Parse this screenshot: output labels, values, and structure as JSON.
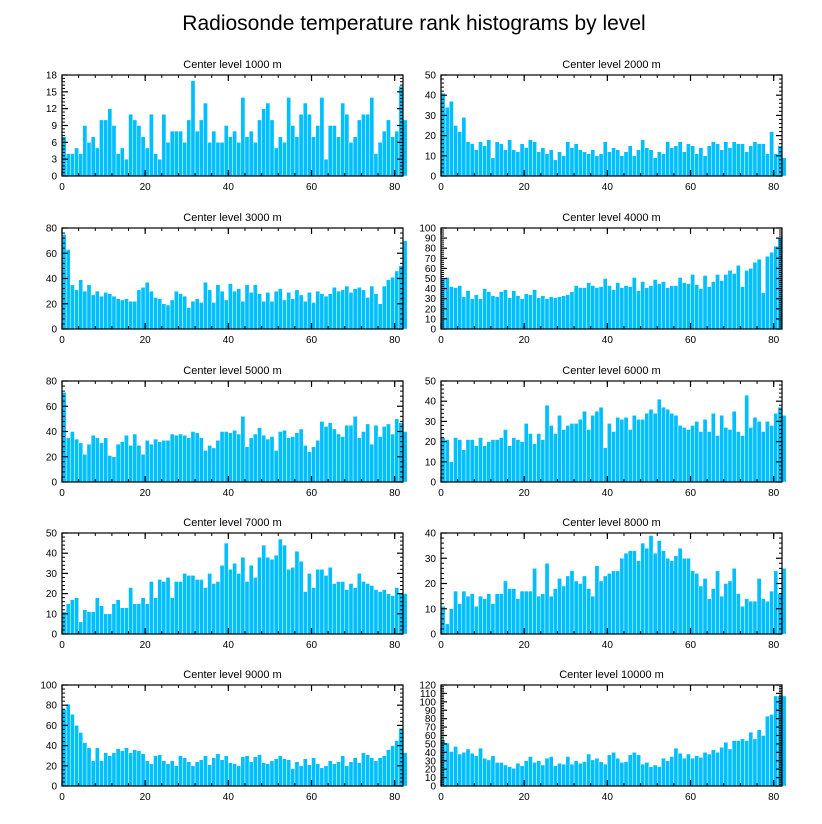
{
  "title": "Radiosonde temperature rank histograms by level",
  "colors": {
    "bar": "#00BFFF",
    "bar_edge": "#ffffff",
    "axis": "#000000",
    "background": "#ffffff"
  },
  "chart_data": [
    {
      "type": "bar",
      "title": "Center level 1000 m",
      "xlim": [
        0,
        82
      ],
      "ylim": [
        0,
        18
      ],
      "xticks": [
        0,
        20,
        40,
        60,
        80
      ],
      "yticks": [
        0,
        3,
        6,
        9,
        12,
        15,
        18
      ],
      "values": [
        7,
        4,
        4,
        5,
        4,
        9,
        6,
        7,
        5,
        10,
        10,
        12,
        9,
        4,
        5,
        3,
        11,
        10,
        9,
        7,
        5,
        11,
        4,
        3,
        11,
        6,
        8,
        8,
        8,
        6,
        10,
        17,
        8,
        10,
        13,
        6,
        8,
        6,
        6,
        9,
        7,
        8,
        6,
        14,
        7,
        8,
        6,
        10,
        12,
        13,
        10,
        5,
        7,
        6,
        14,
        9,
        7,
        11,
        13,
        11,
        7,
        9,
        14,
        3,
        9,
        9,
        7,
        13,
        11,
        6,
        7,
        10,
        11,
        11,
        14,
        4,
        6,
        8,
        10,
        7,
        8,
        16,
        10
      ]
    },
    {
      "type": "bar",
      "title": "Center level 2000 m",
      "xlim": [
        0,
        82
      ],
      "ylim": [
        0,
        50
      ],
      "xticks": [
        0,
        20,
        40,
        60,
        80
      ],
      "yticks": [
        0,
        10,
        20,
        30,
        40,
        50
      ],
      "values": [
        41,
        34,
        37,
        25,
        22,
        29,
        17,
        16,
        13,
        17,
        15,
        18,
        9,
        17,
        16,
        13,
        18,
        13,
        12,
        16,
        14,
        18,
        17,
        12,
        14,
        11,
        13,
        8,
        12,
        10,
        17,
        14,
        16,
        13,
        12,
        11,
        13,
        10,
        11,
        17,
        12,
        14,
        13,
        10,
        12,
        15,
        10,
        13,
        18,
        14,
        13,
        9,
        12,
        11,
        17,
        14,
        15,
        17,
        12,
        16,
        15,
        11,
        14,
        10,
        15,
        17,
        16,
        13,
        17,
        14,
        17,
        16,
        16,
        12,
        15,
        17,
        16,
        16,
        11,
        22,
        11,
        15,
        9
      ]
    },
    {
      "type": "bar",
      "title": "Center level 3000 m",
      "xlim": [
        0,
        82
      ],
      "ylim": [
        0,
        80
      ],
      "xticks": [
        0,
        20,
        40,
        60,
        80
      ],
      "yticks": [
        0,
        20,
        40,
        60,
        80
      ],
      "values": [
        75,
        63,
        35,
        31,
        39,
        30,
        35,
        27,
        30,
        26,
        29,
        28,
        26,
        24,
        23,
        24,
        22,
        22,
        31,
        33,
        37,
        30,
        25,
        24,
        20,
        19,
        23,
        30,
        28,
        26,
        17,
        22,
        24,
        21,
        37,
        31,
        21,
        35,
        30,
        23,
        36,
        30,
        32,
        22,
        35,
        29,
        35,
        28,
        22,
        29,
        22,
        30,
        32,
        23,
        29,
        24,
        31,
        27,
        22,
        29,
        21,
        30,
        28,
        26,
        28,
        33,
        30,
        31,
        34,
        29,
        32,
        33,
        31,
        25,
        34,
        28,
        20,
        34,
        39,
        41,
        46,
        50,
        70
      ]
    },
    {
      "type": "bar",
      "title": "Center level 4000 m",
      "xlim": [
        0,
        82
      ],
      "ylim": [
        0,
        100
      ],
      "xticks": [
        0,
        20,
        40,
        60,
        80
      ],
      "yticks": [
        0,
        10,
        20,
        30,
        40,
        50,
        60,
        70,
        80,
        90,
        100
      ],
      "values": [
        50,
        51,
        42,
        41,
        43,
        32,
        38,
        30,
        34,
        30,
        40,
        37,
        33,
        32,
        37,
        39,
        31,
        38,
        33,
        30,
        35,
        34,
        39,
        31,
        33,
        30,
        32,
        31,
        32,
        33,
        34,
        37,
        43,
        41,
        41,
        46,
        43,
        41,
        42,
        50,
        43,
        39,
        46,
        41,
        43,
        42,
        51,
        38,
        47,
        41,
        43,
        49,
        45,
        47,
        41,
        43,
        43,
        51,
        46,
        45,
        54,
        44,
        40,
        53,
        42,
        47,
        54,
        48,
        54,
        58,
        55,
        63,
        42,
        58,
        60,
        66,
        69,
        36,
        72,
        76,
        82,
        90
      ]
    },
    {
      "type": "bar",
      "title": "Center level 5000 m",
      "xlim": [
        0,
        82
      ],
      "ylim": [
        0,
        80
      ],
      "xticks": [
        0,
        20,
        40,
        60,
        80
      ],
      "yticks": [
        0,
        20,
        40,
        60,
        80
      ],
      "values": [
        71,
        35,
        40,
        34,
        31,
        22,
        30,
        37,
        35,
        31,
        35,
        21,
        20,
        30,
        32,
        37,
        29,
        38,
        29,
        22,
        33,
        30,
        34,
        32,
        33,
        33,
        38,
        37,
        38,
        37,
        35,
        40,
        39,
        35,
        25,
        29,
        27,
        33,
        40,
        40,
        39,
        41,
        38,
        52,
        28,
        35,
        38,
        43,
        37,
        34,
        36,
        25,
        40,
        41,
        35,
        36,
        39,
        42,
        29,
        24,
        28,
        33,
        48,
        44,
        47,
        42,
        38,
        36,
        45,
        45,
        52,
        35,
        40,
        46,
        30,
        45,
        36,
        44,
        46,
        38,
        50,
        47,
        40
      ]
    },
    {
      "type": "bar",
      "title": "Center level 6000 m",
      "xlim": [
        0,
        82
      ],
      "ylim": [
        0,
        50
      ],
      "xticks": [
        0,
        20,
        40,
        60,
        80
      ],
      "yticks": [
        0,
        10,
        20,
        30,
        40,
        50
      ],
      "values": [
        22,
        21,
        10,
        22,
        21,
        16,
        21,
        21,
        18,
        22,
        18,
        20,
        21,
        21,
        22,
        26,
        18,
        22,
        21,
        20,
        29,
        24,
        19,
        24,
        21,
        38,
        28,
        24,
        33,
        26,
        28,
        29,
        29,
        31,
        35,
        26,
        33,
        35,
        37,
        17,
        29,
        25,
        32,
        31,
        32,
        26,
        33,
        31,
        31,
        34,
        36,
        34,
        41,
        37,
        36,
        34,
        33,
        28,
        27,
        26,
        28,
        30,
        25,
        31,
        25,
        34,
        23,
        33,
        27,
        26,
        35,
        25,
        23,
        43,
        27,
        32,
        30,
        25,
        30,
        28,
        34,
        37,
        33
      ]
    },
    {
      "type": "bar",
      "title": "Center level 7000 m",
      "xlim": [
        0,
        82
      ],
      "ylim": [
        0,
        50
      ],
      "xticks": [
        0,
        20,
        40,
        60,
        80
      ],
      "yticks": [
        0,
        10,
        20,
        30,
        40,
        50
      ],
      "values": [
        11,
        15,
        17,
        18,
        6,
        12,
        11,
        11,
        18,
        14,
        10,
        10,
        15,
        17,
        13,
        13,
        23,
        15,
        15,
        18,
        15,
        26,
        18,
        27,
        26,
        28,
        18,
        26,
        26,
        30,
        29,
        29,
        27,
        27,
        23,
        30,
        25,
        26,
        34,
        45,
        32,
        35,
        30,
        38,
        26,
        34,
        28,
        38,
        44,
        38,
        37,
        39,
        47,
        44,
        32,
        33,
        41,
        36,
        21,
        30,
        23,
        32,
        32,
        29,
        33,
        25,
        26,
        26,
        22,
        25,
        23,
        30,
        26,
        25,
        24,
        22,
        21,
        22,
        20,
        19,
        23,
        20,
        20
      ]
    },
    {
      "type": "bar",
      "title": "Center level 8000 m",
      "xlim": [
        0,
        82
      ],
      "ylim": [
        0,
        40
      ],
      "xticks": [
        0,
        20,
        40,
        60,
        80
      ],
      "yticks": [
        0,
        10,
        20,
        30,
        40
      ],
      "values": [
        11,
        4,
        10,
        17,
        12,
        17,
        15,
        16,
        11,
        15,
        14,
        16,
        12,
        16,
        16,
        21,
        18,
        18,
        14,
        17,
        17,
        17,
        26,
        15,
        16,
        28,
        15,
        18,
        22,
        19,
        23,
        25,
        21,
        20,
        23,
        18,
        15,
        27,
        21,
        23,
        24,
        25,
        25,
        30,
        32,
        33,
        33,
        29,
        36,
        34,
        39,
        32,
        37,
        33,
        30,
        29,
        31,
        34,
        30,
        30,
        25,
        24,
        19,
        22,
        14,
        18,
        25,
        15,
        20,
        21,
        26,
        16,
        11,
        14,
        13,
        13,
        22,
        14,
        13,
        17,
        25,
        16,
        26
      ]
    },
    {
      "type": "bar",
      "title": "Center level 9000 m",
      "xlim": [
        0,
        82
      ],
      "ylim": [
        0,
        100
      ],
      "xticks": [
        0,
        20,
        40,
        60,
        80
      ],
      "yticks": [
        0,
        20,
        40,
        60,
        80,
        100
      ],
      "values": [
        76,
        81,
        71,
        60,
        53,
        43,
        38,
        25,
        38,
        25,
        33,
        30,
        33,
        37,
        35,
        38,
        33,
        36,
        35,
        32,
        25,
        22,
        30,
        31,
        25,
        22,
        25,
        20,
        30,
        28,
        24,
        20,
        24,
        26,
        30,
        21,
        28,
        32,
        26,
        30,
        23,
        22,
        20,
        29,
        30,
        24,
        29,
        31,
        23,
        22,
        25,
        27,
        30,
        27,
        26,
        17,
        24,
        20,
        27,
        21,
        28,
        22,
        18,
        20,
        25,
        22,
        24,
        30,
        20,
        24,
        28,
        23,
        33,
        31,
        28,
        25,
        28,
        30,
        36,
        40,
        45,
        57,
        33
      ]
    },
    {
      "type": "bar",
      "title": "Center level 10000 m",
      "xlim": [
        0,
        82
      ],
      "ylim": [
        0,
        120
      ],
      "xticks": [
        0,
        20,
        40,
        60,
        80
      ],
      "yticks": [
        0,
        10,
        20,
        30,
        40,
        50,
        60,
        70,
        80,
        90,
        100,
        110,
        120
      ],
      "values": [
        55,
        51,
        41,
        47,
        38,
        40,
        44,
        39,
        36,
        45,
        33,
        31,
        36,
        28,
        28,
        25,
        23,
        21,
        27,
        24,
        30,
        35,
        28,
        30,
        25,
        33,
        35,
        24,
        27,
        26,
        35,
        26,
        30,
        27,
        29,
        38,
        31,
        33,
        29,
        26,
        37,
        40,
        33,
        28,
        29,
        37,
        40,
        37,
        26,
        28,
        23,
        25,
        23,
        33,
        30,
        35,
        45,
        39,
        33,
        38,
        33,
        36,
        34,
        40,
        38,
        43,
        40,
        46,
        52,
        44,
        54,
        54,
        56,
        54,
        64,
        56,
        67,
        60,
        83,
        85,
        107,
        107,
        107
      ]
    }
  ]
}
